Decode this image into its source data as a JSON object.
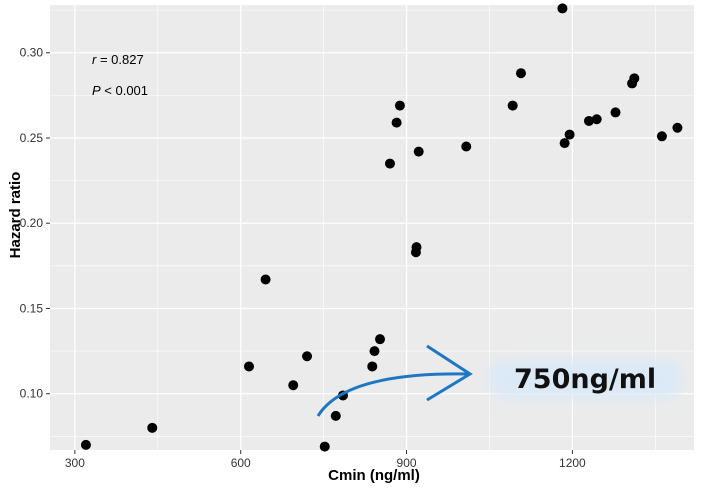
{
  "chart_data": {
    "type": "scatter",
    "xlabel": "Cmin (ng/ml)",
    "ylabel": "Hazard ratio",
    "xlim": [
      255,
      1420
    ],
    "ylim": [
      0.067,
      0.328
    ],
    "x_ticks": [
      300,
      600,
      900,
      1200
    ],
    "y_ticks": [
      0.1,
      0.15,
      0.2,
      0.25,
      0.3
    ],
    "x_tick_labels": [
      "300",
      "600",
      "900",
      "1200"
    ],
    "y_tick_labels": [
      "0.10",
      "0.15",
      "0.20",
      "0.25",
      "0.30"
    ],
    "grid": true,
    "colors": {
      "panel": "#ebebeb",
      "grid": "#ffffff",
      "point": "#000000",
      "arrow": "#1f77c4",
      "callout_bg": "#dbe9f7"
    },
    "annotations": {
      "r_symbol": "r",
      "r_value": " = 0.827",
      "p_symbol": "P",
      "p_value": " < 0.001",
      "callout": "750ng/ml"
    },
    "points": [
      [
        320,
        0.07
      ],
      [
        440,
        0.08
      ],
      [
        615,
        0.116
      ],
      [
        645,
        0.167
      ],
      [
        695,
        0.105
      ],
      [
        720,
        0.122
      ],
      [
        752,
        0.069
      ],
      [
        772,
        0.087
      ],
      [
        785,
        0.099
      ],
      [
        838,
        0.116
      ],
      [
        842,
        0.125
      ],
      [
        852,
        0.132
      ],
      [
        870,
        0.235
      ],
      [
        882,
        0.259
      ],
      [
        888,
        0.269
      ],
      [
        917,
        0.183
      ],
      [
        918,
        0.186
      ],
      [
        922,
        0.242
      ],
      [
        1008,
        0.245
      ],
      [
        1092,
        0.269
      ],
      [
        1107,
        0.288
      ],
      [
        1182,
        0.326
      ],
      [
        1186,
        0.247
      ],
      [
        1195,
        0.252
      ],
      [
        1230,
        0.26
      ],
      [
        1244,
        0.261
      ],
      [
        1278,
        0.265
      ],
      [
        1308,
        0.282
      ],
      [
        1312,
        0.285
      ],
      [
        1362,
        0.251
      ],
      [
        1390,
        0.256
      ]
    ]
  }
}
